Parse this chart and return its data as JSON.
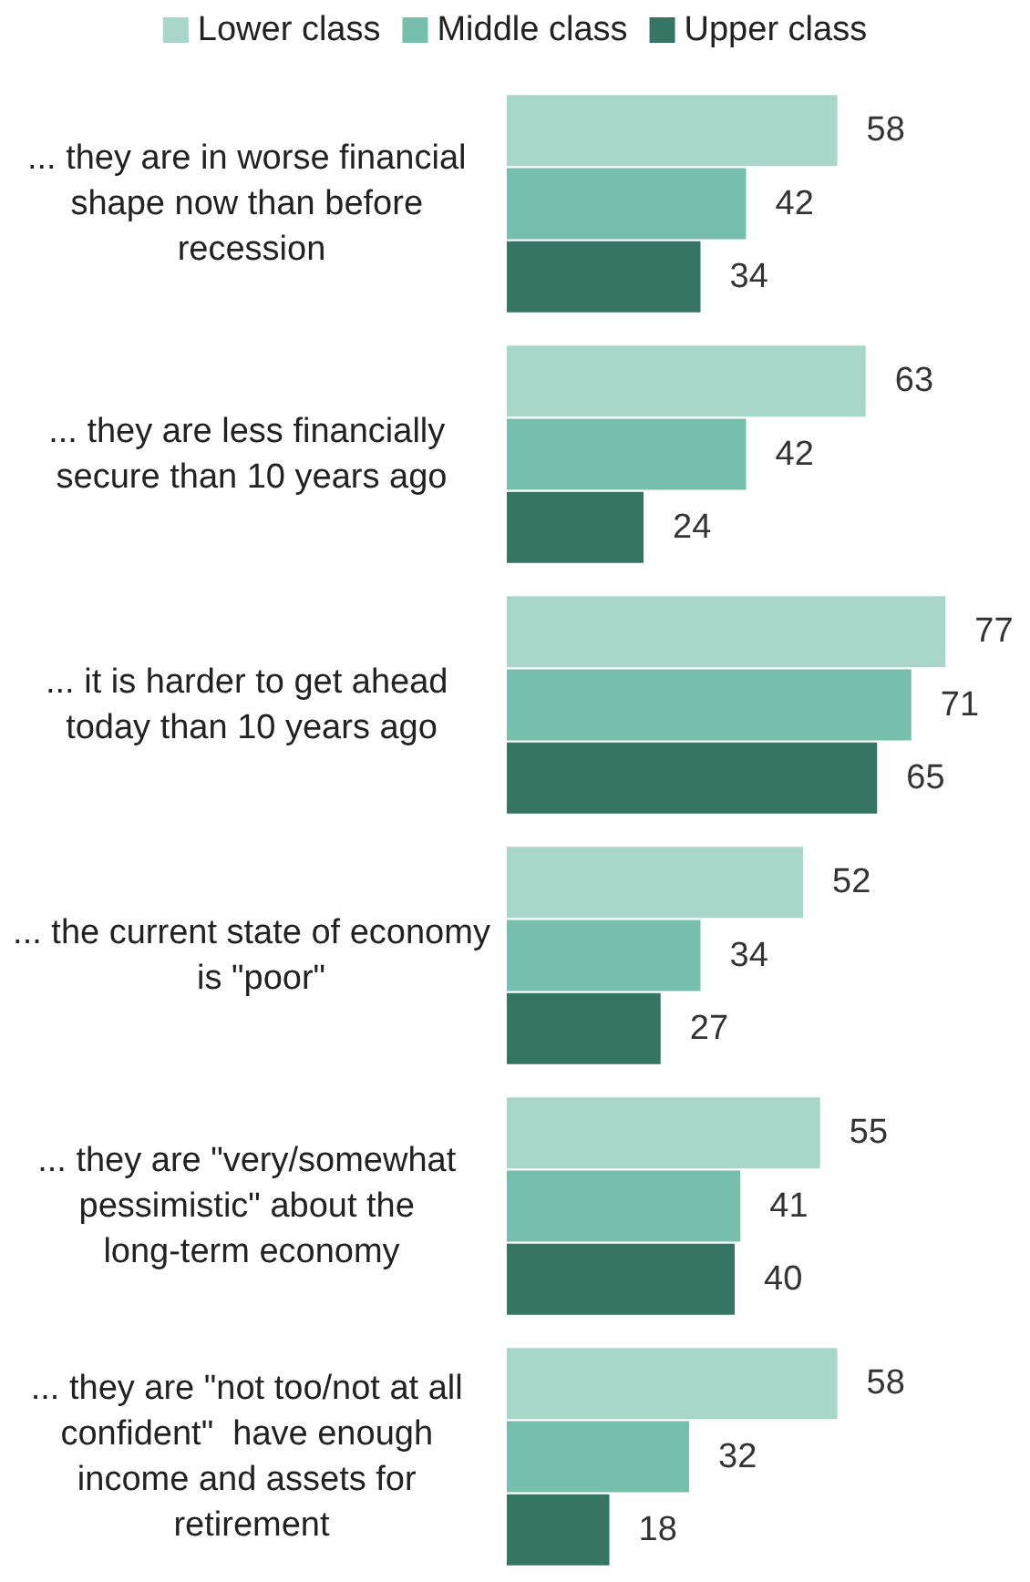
{
  "chart_data": {
    "type": "bar",
    "orientation": "horizontal",
    "legend": "top",
    "data_labels": true,
    "grid": false,
    "categories": [
      "... they are in worse financial shape now than before recession",
      "... they are less financially secure than 10 years ago",
      "... it is harder to get ahead today than 10 years ago",
      "... the current state of economy  is \"poor\"",
      "... they are \"very/somewhat pessimistic\" about the long-term economy",
      "... they are \"not too/not at all confident\"  have enough income and assets for retirement"
    ],
    "series": [
      {
        "name": "Lower class",
        "color": "#a8d6c9",
        "values": [
          58,
          63,
          77,
          52,
          55,
          58
        ]
      },
      {
        "name": "Middle class",
        "color": "#76bfad",
        "values": [
          42,
          42,
          71,
          34,
          41,
          32
        ]
      },
      {
        "name": "Upper class",
        "color": "#367564",
        "values": [
          34,
          24,
          65,
          27,
          40,
          18
        ]
      }
    ]
  }
}
